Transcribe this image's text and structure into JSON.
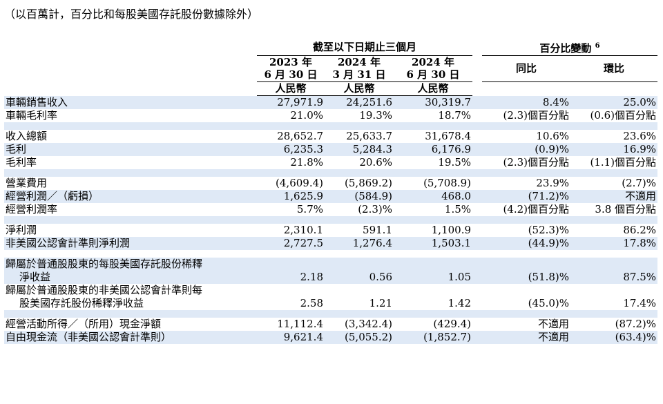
{
  "note": "（以百萬計，百分比和每股美國存託股份數據除外）",
  "header": {
    "group_left": "截至以下日期止三個月",
    "group_right": "百分比變動",
    "group_right_sup": "6",
    "col1_year": "2023 年",
    "col1_date": "6 月 30 日",
    "col2_year": "2024 年",
    "col2_date": "3 月 31 日",
    "col3_year": "2024 年",
    "col3_date": "6 月 30 日",
    "currency": "人民幣",
    "yoy": "同比",
    "qoq": "環比"
  },
  "rows": [
    {
      "label": "車輛銷售收入",
      "c1": "27,971.9",
      "c2": "24,251.6",
      "c3": "30,319.7",
      "yoy": "8.4%",
      "qoq": "25.0%"
    },
    {
      "label": "車輛毛利率",
      "c1": "21.0%",
      "c2": "19.3%",
      "c3": "18.7%",
      "yoy": "(2.3)個百分點",
      "qoq": "(0.6)個百分點"
    },
    {
      "label": "收入總額",
      "c1": "28,652.7",
      "c2": "25,633.7",
      "c3": "31,678.4",
      "yoy": "10.6%",
      "qoq": "23.6%"
    },
    {
      "label": "毛利",
      "c1": "6,235.3",
      "c2": "5,284.3",
      "c3": "6,176.9",
      "yoy": "(0.9)%",
      "qoq": "16.9%"
    },
    {
      "label": "毛利率",
      "c1": "21.8%",
      "c2": "20.6%",
      "c3": "19.5%",
      "yoy": "(2.3)個百分點",
      "qoq": "(1.1)個百分點"
    },
    {
      "label": "營業費用",
      "c1": "(4,609.4)",
      "c2": "(5,869.2)",
      "c3": "(5,708.9)",
      "yoy": "23.9%",
      "qoq": "(2.7)%"
    },
    {
      "label": "經營利潤／（虧損）",
      "c1": "1,625.9",
      "c2": "(584.9)",
      "c3": "468.0",
      "yoy": "(71.2)%",
      "qoq": "不適用"
    },
    {
      "label": "經營利潤率",
      "c1": "5.7%",
      "c2": "(2.3)%",
      "c3": "1.5%",
      "yoy": "(4.2)個百分點",
      "qoq": "3.8 個百分點"
    },
    {
      "label": "淨利潤",
      "c1": "2,310.1",
      "c2": "591.1",
      "c3": "1,100.9",
      "yoy": "(52.3)%",
      "qoq": "86.2%"
    },
    {
      "label": "非美國公認會計準則淨利潤",
      "c1": "2,727.5",
      "c2": "1,276.4",
      "c3": "1,503.1",
      "yoy": "(44.9)%",
      "qoq": "17.8%"
    },
    {
      "label_line1": "歸屬於普通股股東的每股美國存託股份稀釋",
      "label_line2": "淨收益",
      "c1": "2.18",
      "c2": "0.56",
      "c3": "1.05",
      "yoy": "(51.8)%",
      "qoq": "87.5%"
    },
    {
      "label_line1": "歸屬於普通股股東的非美國公認會計準則每",
      "label_line2": "股美國存託股份稀釋淨收益",
      "c1": "2.58",
      "c2": "1.21",
      "c3": "1.42",
      "yoy": "(45.0)%",
      "qoq": "17.4%"
    },
    {
      "label": "經營活動所得／（所用）現金淨額",
      "c1": "11,112.4",
      "c2": "(3,342.4)",
      "c3": "(429.4)",
      "yoy": "不適用",
      "qoq": "(87.2)%"
    },
    {
      "label": "自由現金流（非美國公認會計準則）",
      "c1": "9,621.4",
      "c2": "(5,055.2)",
      "c3": "(1,852.7)",
      "yoy": "不適用",
      "qoq": "(63.4)%"
    }
  ]
}
